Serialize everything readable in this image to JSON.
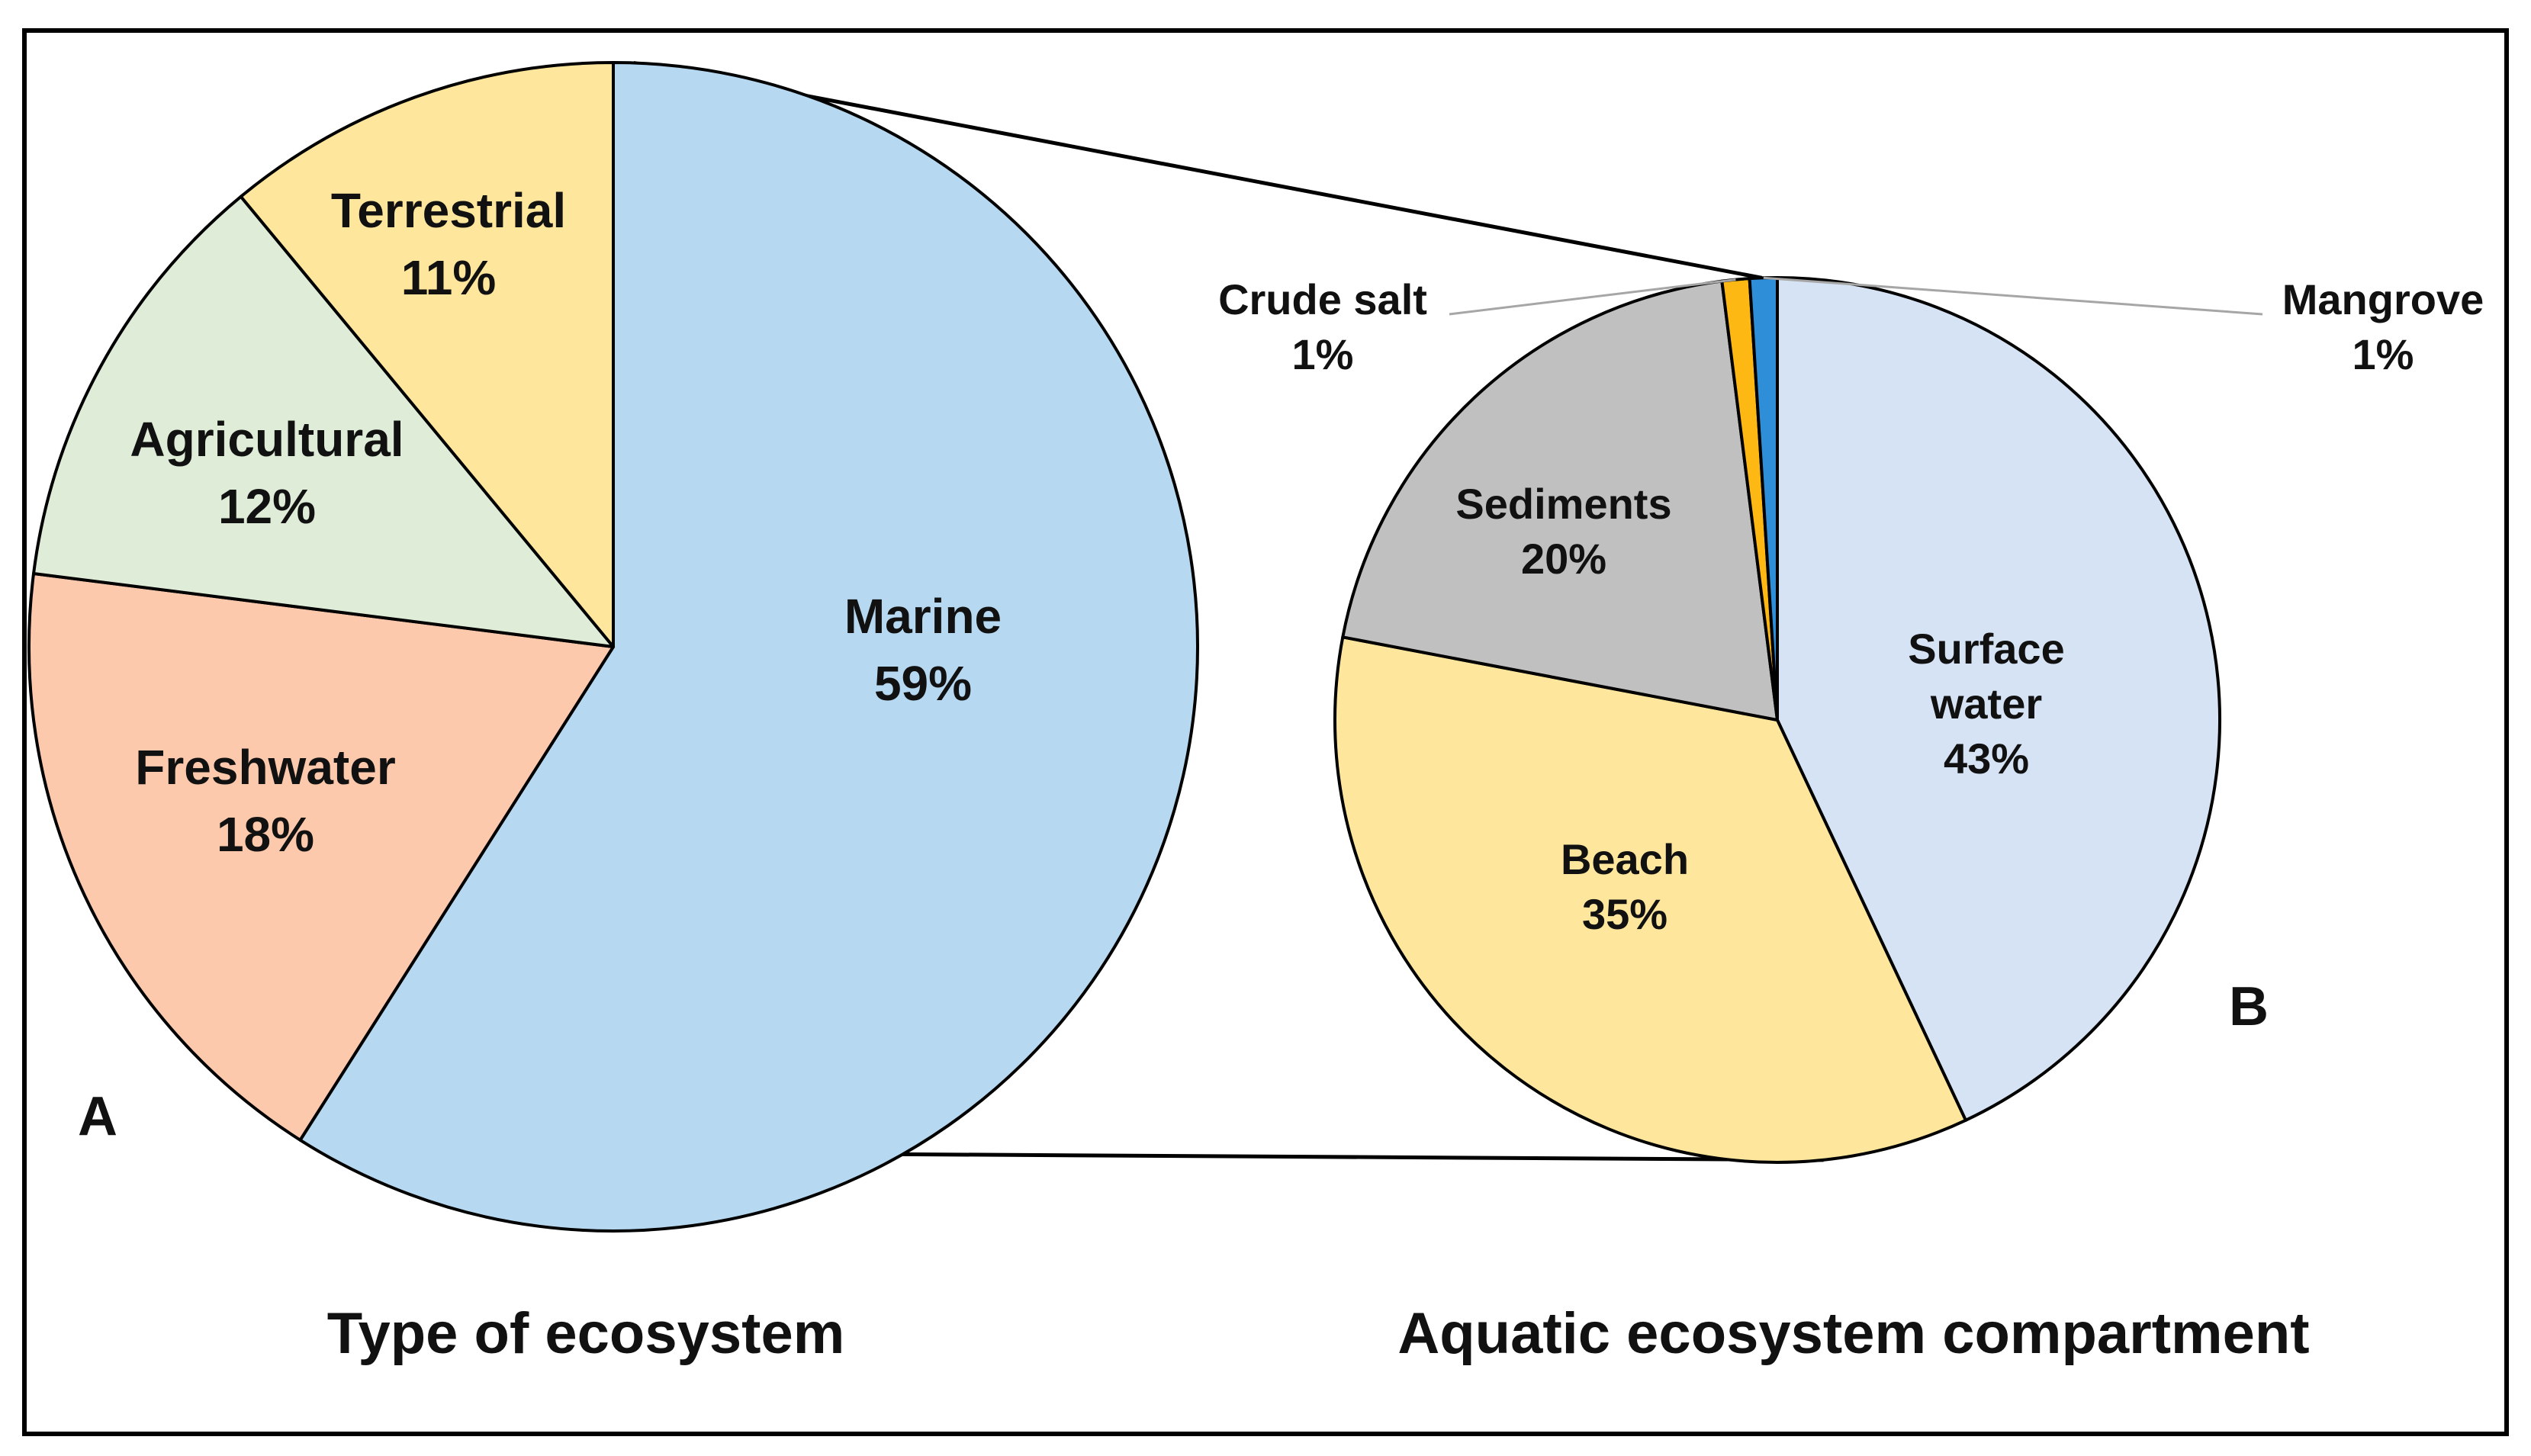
{
  "chart_data": [
    {
      "type": "pie",
      "panel": "A",
      "title": "Type of ecosystem",
      "slices": [
        {
          "label": "Marine",
          "value": 59,
          "value_label": "59%",
          "color": "#b6d8f0"
        },
        {
          "label": "Freshwater",
          "value": 18,
          "value_label": "18%",
          "color": "#fcc9ad"
        },
        {
          "label": "Agricultural",
          "value": 12,
          "value_label": "12%",
          "color": "#deecd8"
        },
        {
          "label": "Terrestrial",
          "value": 11,
          "value_label": "11%",
          "color": "#fee69d"
        }
      ]
    },
    {
      "type": "pie",
      "panel": "B",
      "title": "Aquatic ecosystem compartment",
      "slices": [
        {
          "label": "Surface water",
          "label_lines": [
            "Surface",
            "water"
          ],
          "value": 43,
          "value_label": "43%",
          "color": "#d6e3f4"
        },
        {
          "label": "Beach",
          "value": 35,
          "value_label": "35%",
          "color": "#fee69d"
        },
        {
          "label": "Sediments",
          "value": 20,
          "value_label": "20%",
          "color": "#c0c0c0"
        },
        {
          "label": "Crude salt",
          "value": 1,
          "value_label": "1%",
          "color": "#fdb813"
        },
        {
          "label": "Mangrove",
          "value": 1,
          "value_label": "1%",
          "color": "#2e8ed8"
        }
      ]
    }
  ]
}
